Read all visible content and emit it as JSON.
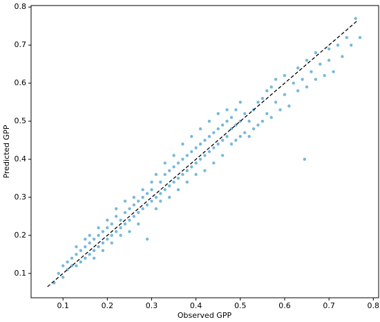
{
  "chart_data": {
    "type": "scatter",
    "xlabel": "Observed GPP",
    "ylabel": "Predicted GPP",
    "xlim": [
      0.028,
      0.812
    ],
    "ylim": [
      0.036,
      0.804
    ],
    "xticks": [
      0.1,
      0.2,
      0.3,
      0.4,
      0.5,
      0.6,
      0.7,
      0.8
    ],
    "yticks": [
      0.1,
      0.2,
      0.3,
      0.4,
      0.5,
      0.6,
      0.7,
      0.8
    ],
    "color": "#1a8ac4",
    "alpha": 0.6,
    "identity_line": [
      0.065,
      0.765
    ],
    "x": [
      0.08,
      0.09,
      0.1,
      0.1,
      0.11,
      0.11,
      0.12,
      0.12,
      0.13,
      0.13,
      0.13,
      0.14,
      0.14,
      0.15,
      0.15,
      0.15,
      0.16,
      0.16,
      0.16,
      0.17,
      0.17,
      0.17,
      0.18,
      0.18,
      0.18,
      0.19,
      0.19,
      0.19,
      0.2,
      0.2,
      0.2,
      0.21,
      0.21,
      0.21,
      0.22,
      0.22,
      0.22,
      0.23,
      0.23,
      0.23,
      0.24,
      0.24,
      0.24,
      0.25,
      0.25,
      0.25,
      0.26,
      0.26,
      0.26,
      0.27,
      0.27,
      0.27,
      0.28,
      0.28,
      0.28,
      0.29,
      0.29,
      0.29,
      0.3,
      0.3,
      0.3,
      0.31,
      0.31,
      0.31,
      0.32,
      0.32,
      0.32,
      0.33,
      0.33,
      0.33,
      0.34,
      0.34,
      0.34,
      0.35,
      0.35,
      0.35,
      0.36,
      0.36,
      0.36,
      0.37,
      0.37,
      0.37,
      0.38,
      0.38,
      0.38,
      0.39,
      0.39,
      0.39,
      0.4,
      0.4,
      0.4,
      0.41,
      0.41,
      0.41,
      0.42,
      0.42,
      0.42,
      0.43,
      0.43,
      0.43,
      0.44,
      0.44,
      0.44,
      0.45,
      0.45,
      0.45,
      0.46,
      0.46,
      0.46,
      0.47,
      0.47,
      0.47,
      0.48,
      0.48,
      0.48,
      0.49,
      0.49,
      0.49,
      0.5,
      0.5,
      0.5,
      0.51,
      0.51,
      0.52,
      0.52,
      0.53,
      0.53,
      0.54,
      0.54,
      0.55,
      0.55,
      0.56,
      0.56,
      0.57,
      0.57,
      0.58,
      0.58,
      0.59,
      0.6,
      0.6,
      0.61,
      0.62,
      0.63,
      0.63,
      0.64,
      0.645,
      0.65,
      0.65,
      0.66,
      0.67,
      0.67,
      0.68,
      0.69,
      0.7,
      0.7,
      0.71,
      0.72,
      0.73,
      0.74,
      0.75,
      0.76,
      0.77
    ],
    "y": [
      0.075,
      0.1,
      0.09,
      0.12,
      0.11,
      0.13,
      0.12,
      0.14,
      0.12,
      0.15,
      0.17,
      0.13,
      0.16,
      0.14,
      0.17,
      0.19,
      0.15,
      0.18,
      0.2,
      0.16,
      0.19,
      0.14,
      0.17,
      0.2,
      0.22,
      0.18,
      0.21,
      0.16,
      0.19,
      0.22,
      0.24,
      0.2,
      0.23,
      0.18,
      0.21,
      0.25,
      0.27,
      0.22,
      0.24,
      0.2,
      0.23,
      0.26,
      0.29,
      0.24,
      0.27,
      0.21,
      0.25,
      0.28,
      0.3,
      0.26,
      0.29,
      0.23,
      0.27,
      0.3,
      0.32,
      0.28,
      0.31,
      0.19,
      0.29,
      0.32,
      0.34,
      0.27,
      0.3,
      0.36,
      0.31,
      0.34,
      0.29,
      0.32,
      0.36,
      0.39,
      0.33,
      0.37,
      0.3,
      0.34,
      0.38,
      0.41,
      0.35,
      0.39,
      0.32,
      0.36,
      0.4,
      0.44,
      0.37,
      0.41,
      0.34,
      0.38,
      0.42,
      0.46,
      0.39,
      0.43,
      0.36,
      0.4,
      0.44,
      0.48,
      0.41,
      0.45,
      0.37,
      0.42,
      0.46,
      0.5,
      0.43,
      0.47,
      0.39,
      0.44,
      0.48,
      0.52,
      0.45,
      0.49,
      0.41,
      0.46,
      0.5,
      0.53,
      0.44,
      0.48,
      0.51,
      0.45,
      0.49,
      0.53,
      0.46,
      0.5,
      0.55,
      0.47,
      0.52,
      0.46,
      0.5,
      0.48,
      0.53,
      0.49,
      0.55,
      0.5,
      0.56,
      0.52,
      0.58,
      0.51,
      0.59,
      0.55,
      0.61,
      0.53,
      0.57,
      0.62,
      0.54,
      0.6,
      0.58,
      0.64,
      0.61,
      0.4,
      0.59,
      0.66,
      0.63,
      0.68,
      0.61,
      0.65,
      0.62,
      0.69,
      0.66,
      0.63,
      0.7,
      0.67,
      0.72,
      0.7,
      0.77,
      0.72
    ]
  }
}
